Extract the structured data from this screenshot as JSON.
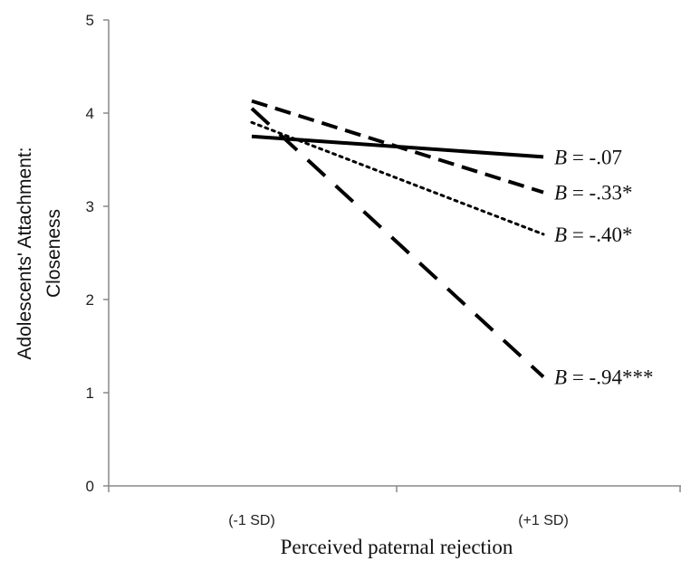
{
  "chart_data": {
    "type": "line",
    "title": "",
    "xlabel": "Perceived paternal rejection",
    "ylabel_lines": [
      "Adolescents' Attachment:",
      "Closeness"
    ],
    "categories": [
      "(-1 SD)",
      "(+1 SD)"
    ],
    "ylim": [
      0,
      5
    ],
    "yticks": [
      0,
      1,
      2,
      3,
      4,
      5
    ],
    "grid": false,
    "legend": "none",
    "series": [
      {
        "style": "solid",
        "values": [
          3.75,
          3.53
        ],
        "slope_prefix": "B",
        "slope_text": " = -.07"
      },
      {
        "style": "dashed",
        "values": [
          4.13,
          3.15
        ],
        "slope_prefix": "B",
        "slope_text": " = -.33*"
      },
      {
        "style": "dotted",
        "values": [
          3.9,
          2.7
        ],
        "slope_prefix": "B",
        "slope_text": " = -.40*"
      },
      {
        "style": "longdash",
        "values": [
          4.05,
          1.17
        ],
        "slope_prefix": "B",
        "slope_text": " = -.94***"
      }
    ],
    "colors": {
      "line": "#000000",
      "axis": "#888888",
      "text": "#222222"
    }
  }
}
